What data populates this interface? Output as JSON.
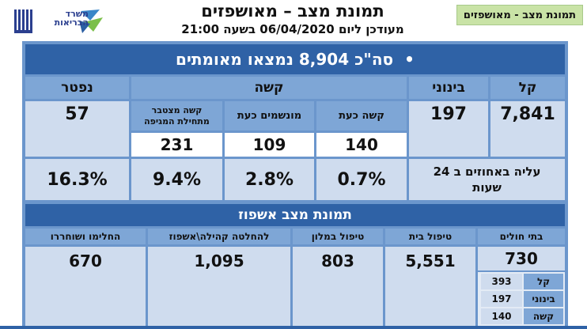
{
  "header": {
    "title": "תמונת מצב – מאושפזים",
    "subtitle": "מעודכן ליום 06/04/2020 בשעה 21:00",
    "tag": "תמונת מצב - מאושפזים",
    "logo_text_line1": "משרד",
    "logo_text_line2": "הבריאות"
  },
  "summary": {
    "bullet": "•",
    "total": "סה\"כ 8,904 נמצאו מאומתים"
  },
  "severity": {
    "mild_label": "קל",
    "moderate_label": "בינוני",
    "severe_label": "קשה",
    "dead_label": "נפטר",
    "severe_now_label": "קשה כעת",
    "ventilated_label": "מונשמים כעת",
    "severe_cum_label": "קשה מצטבר מתחילת המגיפה",
    "mild_value": "7,841",
    "moderate_value": "197",
    "severe_now_value": "140",
    "ventilated_value": "109",
    "severe_cum_value": "231",
    "dead_value": "57",
    "rise_label": "עליה באחוזים ב 24 שעות",
    "rise_severe_now": "0.7%",
    "rise_ventilated": "2.8%",
    "rise_severe_cum": "9.4%",
    "rise_dead": "16.3%"
  },
  "hospitalization": {
    "title": "תמונת מצב אשפוז",
    "hospitals_label": "בתי חולים",
    "home_label": "טיפול בית",
    "hotel_label": "טיפול במלון",
    "community_label": "להחלטה קהילה\\אשפוז",
    "recovered_label": "החלימו ושוחררו",
    "hospitals_value": "730",
    "home_value": "5,551",
    "hotel_value": "803",
    "community_value": "1,095",
    "recovered_value": "670",
    "breakdown": [
      {
        "label": "קל",
        "value": "393"
      },
      {
        "label": "בינוני",
        "value": "197"
      },
      {
        "label": "קשה",
        "value": "140"
      }
    ]
  }
}
